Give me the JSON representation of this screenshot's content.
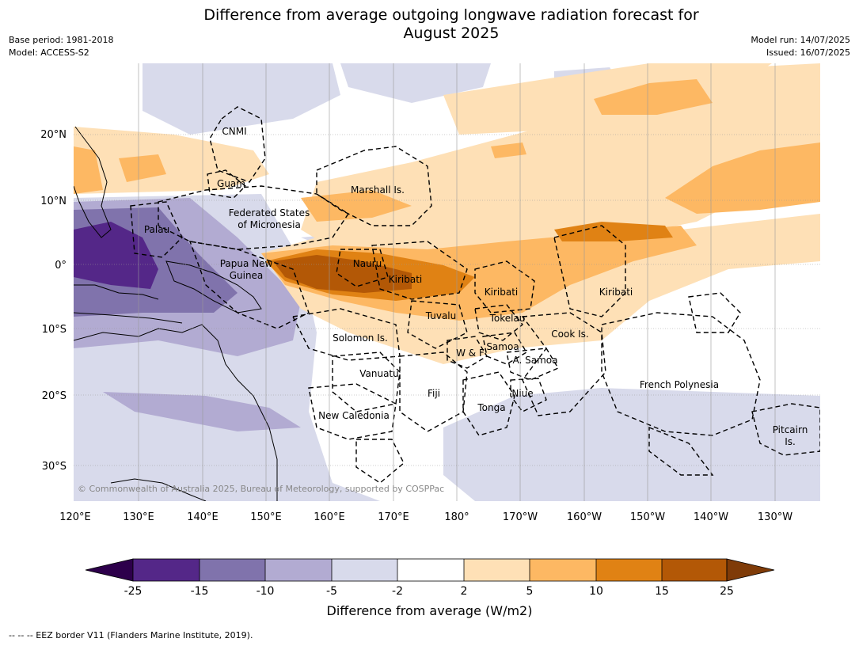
{
  "title_line1": "Difference from average outgoing longwave radiation forecast for",
  "title_line2": "August 2025",
  "meta_left": [
    "Base period: 1981-2018",
    "Model: ACCESS-S2"
  ],
  "meta_right": [
    "Model run: 14/07/2025",
    "Issued: 16/07/2025"
  ],
  "lon_labels": [
    "120°E",
    "130°E",
    "140°E",
    "150°E",
    "160°E",
    "170°E",
    "180°",
    "170°W",
    "160°W",
    "150°W",
    "140°W",
    "130°W"
  ],
  "lat_labels": [
    "20°N",
    "10°N",
    "0°",
    "10°S",
    "20°S",
    "30°S"
  ],
  "region_labels": [
    "CNMI",
    "Guam",
    "Marshall Is.",
    "Federated States",
    "of Micronesia",
    "Palau",
    "Papua New",
    "Guinea",
    "Nauru",
    "Kiribati",
    "Kiribati",
    "Kiribati",
    "Tuvalu",
    "Tokelau",
    "Cook Is.",
    "Solomon Is.",
    "W & F",
    "Samoa",
    "A. Samoa",
    "Vanuatu",
    "Fiji",
    "Niue",
    "Tonga",
    "French Polynesia",
    "New Caledonia",
    "Pitcairn",
    "Is."
  ],
  "copyright": "© Commonwealth of Australia 2025, Bureau of Meteorology, supported by COSPPac",
  "colorbar": {
    "ticks": [
      "-25",
      "-15",
      "-10",
      "-5",
      "-2",
      "2",
      "5",
      "10",
      "15",
      "25"
    ],
    "colors": [
      "#2d004b",
      "#542788",
      "#8073ac",
      "#b2abd2",
      "#d8daeb",
      "#ffffff",
      "#fee0b6",
      "#fdb863",
      "#e08214",
      "#b35806",
      "#7f3b08"
    ],
    "label": "Difference from average (W/m2)"
  },
  "footer": "--  --  -- EEZ border V11 (Flanders Marine Institute, 2019)."
}
